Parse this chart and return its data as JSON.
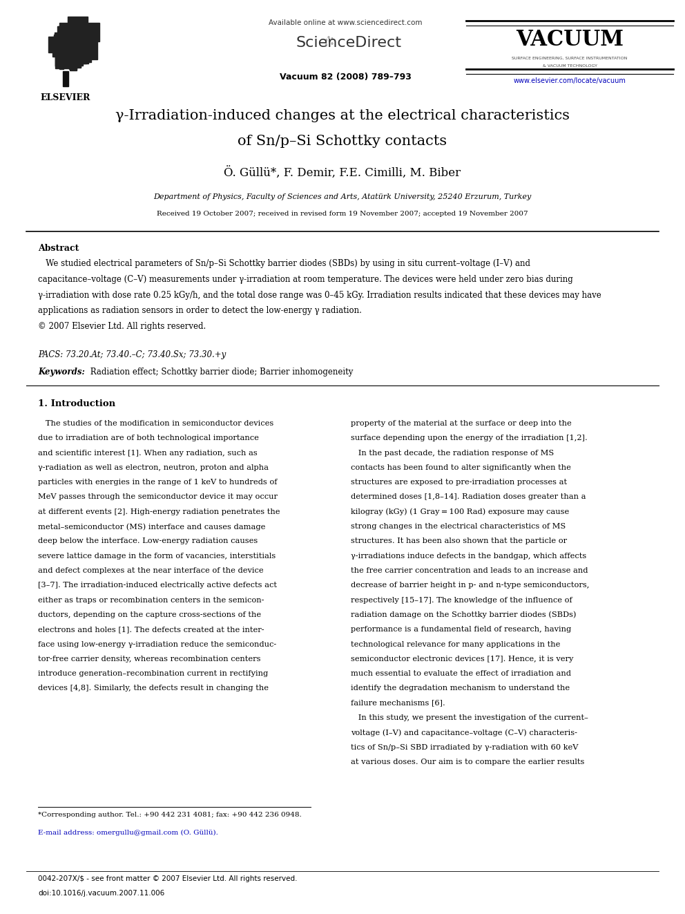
{
  "page_width": 9.92,
  "page_height": 13.23,
  "bg_color": "#ffffff",
  "available_online": "Available online at www.sciencedirect.com",
  "sciencedirect": "ScienceDirect",
  "journal_name": "Vacuum 82 (2008) 789–793",
  "vacuum_label": "VACUUM",
  "vacuum_sub1": "SURFACE ENGINEERING, SURFACE INSTRUMENTATION",
  "vacuum_sub2": "& VACUUM TECHNOLOGY",
  "journal_url": "www.elsevier.com/locate/vacuum",
  "elsevier_label": "ELSEVIER",
  "title_line1": "γ-Irradiation-induced changes at the electrical characteristics",
  "title_line2": "of Sn/p–Si Schottky contacts",
  "authors": "Ö. Güllü*, F. Demir, F.E. Cimilli, M. Biber",
  "affiliation": "Department of Physics, Faculty of Sciences and Arts, Atatürk University, 25240 Erzurum, Turkey",
  "received": "Received 19 October 2007; received in revised form 19 November 2007; accepted 19 November 2007",
  "abstract_heading": "Abstract",
  "abstract_body1": "   We studied electrical parameters of Sn/p–Si Schottky barrier diodes (SBDs) by using in situ current–voltage (I–V) and",
  "abstract_body2": "capacitance–voltage (C–V) measurements under γ-irradiation at room temperature. The devices were held under zero bias during",
  "abstract_body3": "γ-irradiation with dose rate 0.25 kGy/h, and the total dose range was 0–45 kGy. Irradiation results indicated that these devices may have",
  "abstract_body4": "applications as radiation sensors in order to detect the low-energy γ radiation.",
  "abstract_body5": "© 2007 Elsevier Ltd. All rights reserved.",
  "pacs": "PACS: 73.20.At; 73.40.–C; 73.40.Sx; 73.30.+y",
  "keywords_label": "Keywords:",
  "keywords_text": " Radiation effect; Schottky barrier diode; Barrier inhomogeneity",
  "section1_heading": "1. Introduction",
  "col1": [
    "   The studies of the modification in semiconductor devices",
    "due to irradiation are of both technological importance",
    "and scientific interest [1]. When any radiation, such as",
    "γ-radiation as well as electron, neutron, proton and alpha",
    "particles with energies in the range of 1 keV to hundreds of",
    "MeV passes through the semiconductor device it may occur",
    "at different events [2]. High-energy radiation penetrates the",
    "metal–semiconductor (MS) interface and causes damage",
    "deep below the interface. Low-energy radiation causes",
    "severe lattice damage in the form of vacancies, interstitials",
    "and defect complexes at the near interface of the device",
    "[3–7]. The irradiation-induced electrically active defects act",
    "either as traps or recombination centers in the semicon-",
    "ductors, depending on the capture cross-sections of the",
    "electrons and holes [1]. The defects created at the inter-",
    "face using low-energy γ-irradiation reduce the semiconduc-",
    "tor-free carrier density, whereas recombination centers",
    "introduce generation–recombination current in rectifying",
    "devices [4,8]. Similarly, the defects result in changing the"
  ],
  "col2": [
    "property of the material at the surface or deep into the",
    "surface depending upon the energy of the irradiation [1,2].",
    "   In the past decade, the radiation response of MS",
    "contacts has been found to alter significantly when the",
    "structures are exposed to pre-irradiation processes at",
    "determined doses [1,8–14]. Radiation doses greater than a",
    "kilogray (kGy) (1 Gray = 100 Rad) exposure may cause",
    "strong changes in the electrical characteristics of MS",
    "structures. It has been also shown that the particle or",
    "γ-irradiations induce defects in the bandgap, which affects",
    "the free carrier concentration and leads to an increase and",
    "decrease of barrier height in p- and n-type semiconductors,",
    "respectively [15–17]. The knowledge of the influence of",
    "radiation damage on the Schottky barrier diodes (SBDs)",
    "performance is a fundamental field of research, having",
    "technological relevance for many applications in the",
    "semiconductor electronic devices [17]. Hence, it is very",
    "much essential to evaluate the effect of irradiation and",
    "identify the degradation mechanism to understand the",
    "failure mechanisms [6].",
    "   In this study, we present the investigation of the current–",
    "voltage (I–V) and capacitance–voltage (C–V) characteris-",
    "tics of Sn/p–Si SBD irradiated by γ-radiation with 60 keV",
    "at various doses. Our aim is to compare the earlier results"
  ],
  "footnote_star": "*Corresponding author. Tel.: +90 442 231 4081; fax: +90 442 236 0948.",
  "footnote_email": "E-mail address: omergullu@gmail.com (O. Güllü).",
  "footer_issn": "0042-207X/$ - see front matter © 2007 Elsevier Ltd. All rights reserved.",
  "footer_doi": "doi:10.1016/j.vacuum.2007.11.006"
}
